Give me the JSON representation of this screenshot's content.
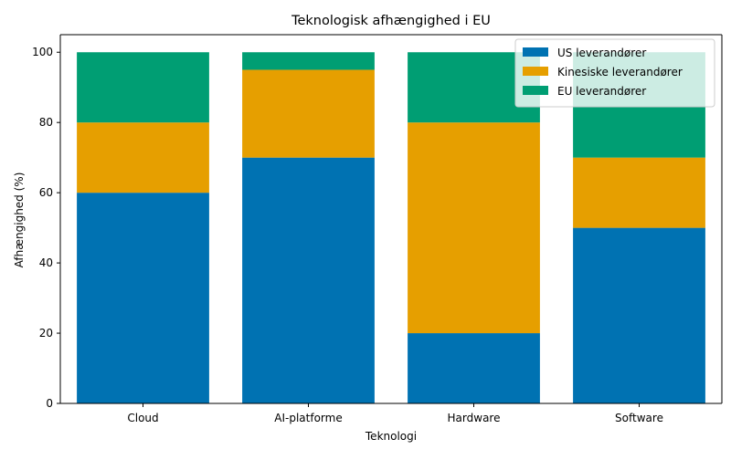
{
  "chart_data": {
    "type": "bar",
    "stacked": true,
    "title": "Teknologisk afhængighed i EU",
    "xlabel": "Teknologi",
    "ylabel": "Afhængighed (%)",
    "categories": [
      "Cloud",
      "AI-platforme",
      "Hardware",
      "Software"
    ],
    "series": [
      {
        "name": "US leverandører",
        "values": [
          60,
          70,
          20,
          50
        ],
        "color": "#0072B2"
      },
      {
        "name": "Kinesiske leverandører",
        "values": [
          20,
          25,
          60,
          20
        ],
        "color": "#E69F00"
      },
      {
        "name": "EU leverandører",
        "values": [
          20,
          5,
          20,
          30
        ],
        "color": "#009E73"
      }
    ],
    "ylim": [
      0,
      105
    ],
    "yticks": [
      0,
      20,
      40,
      60,
      80,
      100
    ],
    "grid": false,
    "legend_position": "top-right"
  }
}
